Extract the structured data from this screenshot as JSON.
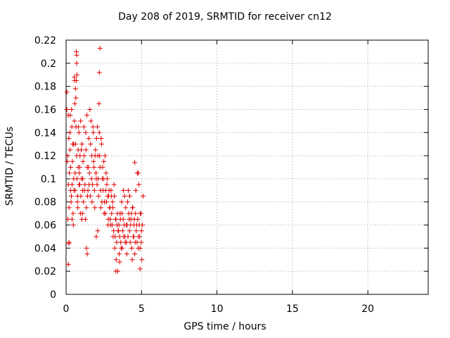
{
  "chart_data": {
    "type": "scatter",
    "title": "Day 208 of 2019, SRMTID for receiver cn12",
    "xlabel": "GPS time / hours",
    "ylabel": "SRMTID / TECUs",
    "xlim": [
      0,
      24
    ],
    "ylim": [
      0,
      0.22
    ],
    "xticks": [
      0,
      5,
      10,
      15,
      20
    ],
    "yticks": [
      0,
      0.02,
      0.04,
      0.06,
      0.08,
      0.1,
      0.12,
      0.14,
      0.16,
      0.18,
      0.2,
      0.22
    ],
    "ytick_labels": [
      "0",
      "0.02",
      "0.04",
      "0.06",
      "0.08",
      "0.1",
      "0.12",
      "0.14",
      "0.16",
      "0.18",
      "0.2",
      "0.22"
    ],
    "grid": true,
    "marker": "+",
    "color": "#e00000",
    "series": [
      {
        "name": "cn12",
        "x": [
          0.05,
          0.1,
          0.15,
          0.2,
          0.25,
          0.3,
          0.35,
          0.4,
          0.45,
          0.5,
          0.55,
          0.6,
          0.65,
          0.7,
          0.75,
          0.8,
          0.85,
          0.9,
          0.95,
          1.0,
          0.05,
          0.12,
          0.18,
          0.22,
          0.28,
          0.33,
          0.38,
          0.42,
          0.48,
          0.52,
          0.58,
          0.62,
          0.68,
          0.72,
          0.78,
          0.82,
          0.88,
          0.92,
          0.98,
          1.02,
          0.08,
          0.14,
          0.2,
          0.26,
          0.3,
          0.36,
          0.4,
          0.46,
          0.5,
          0.56,
          0.6,
          0.66,
          0.7,
          0.76,
          0.8,
          0.86,
          0.9,
          0.96,
          1.05,
          1.1,
          1.05,
          1.1,
          1.15,
          1.2,
          1.25,
          1.3,
          1.35,
          1.4,
          1.45,
          1.5,
          1.55,
          1.6,
          1.65,
          1.7,
          1.75,
          1.8,
          1.85,
          1.9,
          1.95,
          2.0,
          1.08,
          1.12,
          1.18,
          1.22,
          1.28,
          1.32,
          1.38,
          1.42,
          1.48,
          1.52,
          1.58,
          1.62,
          1.68,
          1.72,
          1.78,
          1.82,
          1.88,
          1.92,
          1.98,
          2.02,
          2.05,
          2.1,
          2.15,
          2.2,
          2.25,
          2.3,
          2.35,
          2.4,
          2.45,
          2.5,
          2.55,
          2.6,
          2.65,
          2.7,
          2.75,
          2.8,
          2.85,
          2.9,
          2.95,
          3.0,
          2.08,
          2.12,
          2.18,
          2.22,
          2.28,
          2.32,
          2.38,
          2.42,
          2.48,
          2.52,
          2.58,
          2.62,
          2.68,
          2.72,
          2.78,
          2.82,
          2.88,
          2.92,
          2.98,
          3.02,
          3.05,
          3.1,
          3.15,
          3.2,
          3.25,
          3.3,
          3.35,
          3.4,
          3.45,
          3.5,
          3.55,
          3.6,
          3.65,
          3.7,
          3.75,
          3.8,
          3.85,
          3.9,
          3.95,
          4.0,
          3.08,
          3.12,
          3.18,
          3.22,
          3.28,
          3.32,
          3.38,
          3.42,
          3.48,
          3.52,
          3.58,
          3.62,
          3.68,
          3.72,
          3.78,
          3.82,
          3.88,
          3.92,
          3.98,
          4.02,
          4.05,
          4.1,
          4.15,
          4.2,
          4.25,
          4.3,
          4.35,
          4.4,
          4.45,
          4.5,
          4.55,
          4.6,
          4.65,
          4.7,
          4.75,
          4.8,
          4.85,
          4.9,
          4.95,
          5.0,
          4.08,
          4.12,
          4.18,
          4.22,
          4.28,
          4.32,
          4.38,
          4.42,
          4.48,
          4.52,
          4.58,
          4.62,
          4.68,
          4.72,
          4.78,
          4.82,
          4.88,
          4.92,
          4.98,
          5.05,
          0.7,
          0.72,
          0.68,
          2.25,
          2.2,
          0.55,
          0.62,
          0.15,
          0.18,
          3.3,
          3.55,
          4.55,
          4.78,
          4.9,
          5.02,
          5.1,
          1.35,
          1.4,
          2.0,
          2.1
        ],
        "y": [
          0.16,
          0.12,
          0.095,
          0.075,
          0.14,
          0.11,
          0.085,
          0.065,
          0.13,
          0.1,
          0.15,
          0.09,
          0.17,
          0.12,
          0.08,
          0.11,
          0.14,
          0.095,
          0.07,
          0.125,
          0.175,
          0.065,
          0.135,
          0.105,
          0.155,
          0.08,
          0.145,
          0.115,
          0.06,
          0.09,
          0.165,
          0.13,
          0.185,
          0.1,
          0.075,
          0.145,
          0.105,
          0.12,
          0.085,
          0.1,
          0.115,
          0.155,
          0.045,
          0.125,
          0.09,
          0.16,
          0.095,
          0.07,
          0.13,
          0.185,
          0.105,
          0.145,
          0.2,
          0.085,
          0.125,
          0.095,
          0.11,
          0.15,
          0.065,
          0.09,
          0.13,
          0.1,
          0.08,
          0.12,
          0.095,
          0.14,
          0.075,
          0.11,
          0.09,
          0.135,
          0.105,
          0.085,
          0.15,
          0.12,
          0.095,
          0.14,
          0.11,
          0.075,
          0.125,
          0.1,
          0.07,
          0.115,
          0.145,
          0.09,
          0.065,
          0.125,
          0.155,
          0.085,
          0.11,
          0.095,
          0.16,
          0.13,
          0.1,
          0.08,
          0.145,
          0.115,
          0.09,
          0.12,
          0.105,
          0.135,
          0.095,
          0.12,
          0.085,
          0.14,
          0.11,
          0.075,
          0.13,
          0.1,
          0.09,
          0.115,
          0.08,
          0.07,
          0.105,
          0.095,
          0.085,
          0.065,
          0.09,
          0.075,
          0.06,
          0.085,
          0.145,
          0.1,
          0.165,
          0.12,
          0.09,
          0.135,
          0.08,
          0.11,
          0.1,
          0.07,
          0.12,
          0.09,
          0.08,
          0.1,
          0.06,
          0.085,
          0.075,
          0.065,
          0.09,
          0.07,
          0.06,
          0.075,
          0.055,
          0.085,
          0.05,
          0.065,
          0.045,
          0.07,
          0.055,
          0.06,
          0.05,
          0.065,
          0.04,
          0.07,
          0.055,
          0.09,
          0.06,
          0.05,
          0.075,
          0.045,
          0.08,
          0.05,
          0.095,
          0.04,
          0.065,
          0.03,
          0.06,
          0.02,
          0.055,
          0.035,
          0.07,
          0.045,
          0.08,
          0.04,
          0.065,
          0.05,
          0.085,
          0.045,
          0.06,
          0.035,
          0.06,
          0.05,
          0.07,
          0.055,
          0.045,
          0.065,
          0.04,
          0.075,
          0.05,
          0.06,
          0.035,
          0.07,
          0.055,
          0.045,
          0.065,
          0.05,
          0.06,
          0.04,
          0.07,
          0.055,
          0.08,
          0.09,
          0.065,
          0.085,
          0.06,
          0.07,
          0.03,
          0.075,
          0.05,
          0.065,
          0.045,
          0.09,
          0.06,
          0.105,
          0.04,
          0.095,
          0.05,
          0.07,
          0.045,
          0.06,
          0.207,
          0.19,
          0.21,
          0.213,
          0.192,
          0.188,
          0.178,
          0.026,
          0.044,
          0.02,
          0.028,
          0.114,
          0.105,
          0.022,
          0.03,
          0.085,
          0.04,
          0.035,
          0.05,
          0.055
        ]
      }
    ]
  }
}
